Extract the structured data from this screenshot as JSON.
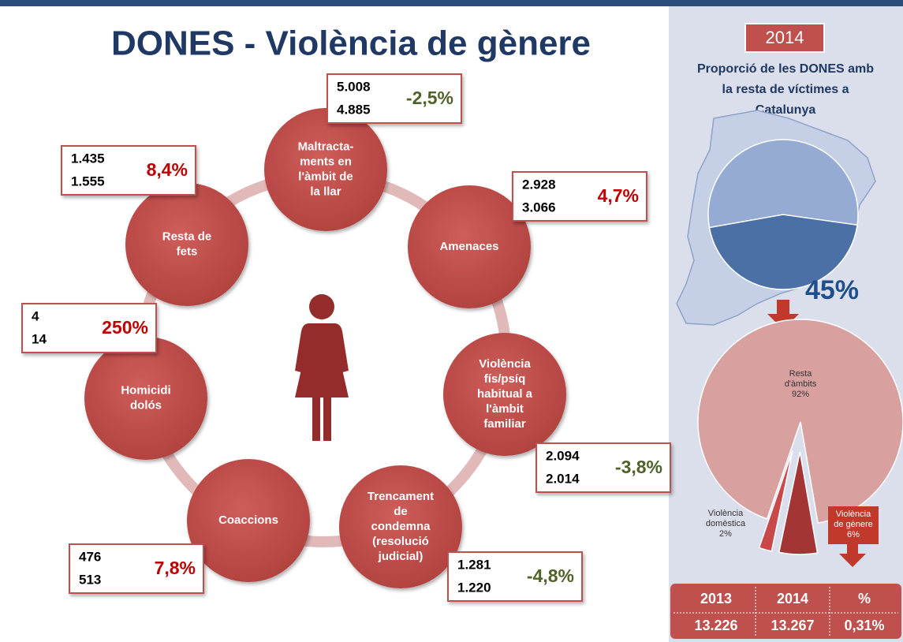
{
  "title": "DONES - Violència de gènere",
  "nodes": [
    {
      "label": [
        "Maltracta-",
        "ments en",
        "l'àmbit de",
        "la llar"
      ],
      "values": [
        "5.008",
        "4.885"
      ],
      "change": "-2,5%",
      "change_color": "#4f6228"
    },
    {
      "label": [
        "Amenaces"
      ],
      "values": [
        "2.928",
        "3.066"
      ],
      "change": "4,7%",
      "change_color": "#c00000"
    },
    {
      "label": [
        "Violència",
        "fís/psíq",
        "habitual a",
        "l'àmbit",
        "familiar"
      ],
      "values": [
        "2.094",
        "2.014"
      ],
      "change": "-3,8%",
      "change_color": "#4f6228"
    },
    {
      "label": [
        "Trencament",
        "de",
        "condemna",
        "(resolució",
        "judicial)"
      ],
      "values": [
        "1.281",
        "1.220"
      ],
      "change": "-4,8%",
      "change_color": "#4f6228"
    },
    {
      "label": [
        "Coaccions"
      ],
      "values": [
        "476",
        "513"
      ],
      "change": "7,8%",
      "change_color": "#c00000"
    },
    {
      "label": [
        "Homicidi",
        "dolós"
      ],
      "values": [
        "4",
        "14"
      ],
      "change": "250%",
      "change_color": "#c00000"
    },
    {
      "label": [
        "Resta de",
        "fets"
      ],
      "values": [
        "1.435",
        "1.555"
      ],
      "change": "8,4%",
      "change_color": "#c00000"
    }
  ],
  "panel": {
    "year": "2014",
    "heading": [
      "Proporció de les DONES  amb",
      "la resta de víctimes a",
      "Catalunya"
    ],
    "pie1": {
      "values": [
        45
      ],
      "value_labels": [
        "45%"
      ],
      "color": "#4a70a6",
      "rest_color": "#95abd3"
    },
    "pie2": {
      "slices": [
        {
          "name": [
            "Resta",
            "d'àmbits"
          ],
          "value": 92,
          "value_label": "92%",
          "color": "#d9a0a0"
        },
        {
          "name": [
            "Violència",
            "de gènere"
          ],
          "value": 6,
          "value_label": "6%",
          "color": "#a33535"
        },
        {
          "name": [
            "Violència",
            "domèstica"
          ],
          "value": 2,
          "value_label": "2%",
          "color": "#c9494a"
        }
      ]
    },
    "table": {
      "header": [
        "2013",
        "2014",
        "%"
      ],
      "row": [
        "13.226",
        "13.267",
        "0,31%"
      ]
    }
  }
}
